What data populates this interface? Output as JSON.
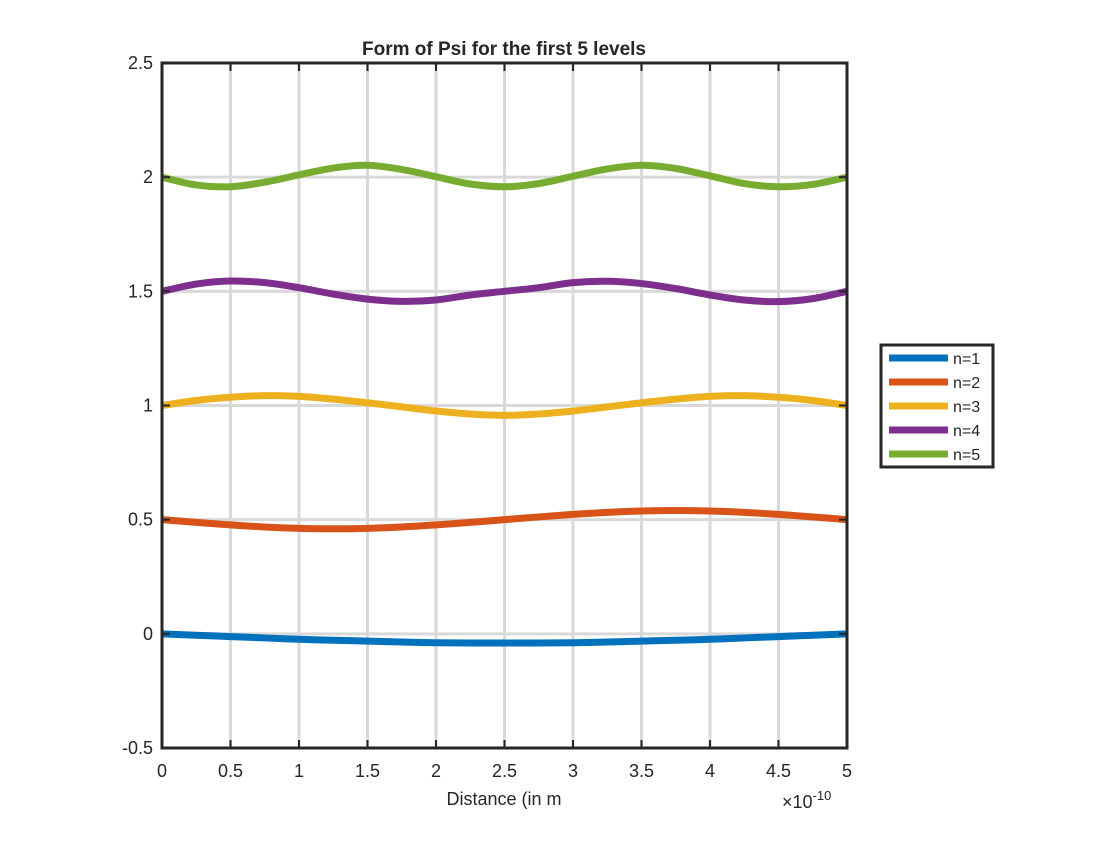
{
  "chart_data": {
    "type": "line",
    "title": "Form of Psi for the first 5 levels",
    "xlabel": "Distance (in m",
    "ylabel": "",
    "x_exponent_base": "×10",
    "x_exponent_power": "-10",
    "xlim": [
      0,
      5
    ],
    "ylim": [
      -0.5,
      2.5
    ],
    "xticks": [
      0,
      0.5,
      1,
      1.5,
      2,
      2.5,
      3,
      3.5,
      4,
      4.5,
      5
    ],
    "xtick_labels": [
      "0",
      "0.5",
      "1",
      "1.5",
      "2",
      "2.5",
      "3",
      "3.5",
      "4",
      "4.5",
      "5"
    ],
    "yticks": [
      -0.5,
      0,
      0.5,
      1,
      1.5,
      2,
      2.5
    ],
    "ytick_labels": [
      "-0.5",
      "0",
      "0.5",
      "1",
      "1.5",
      "2",
      "2.5"
    ],
    "grid": true,
    "legend_position": "outside-right",
    "x": [
      0,
      0.25,
      0.5,
      0.75,
      1,
      1.25,
      1.5,
      1.75,
      2,
      2.25,
      2.5,
      2.75,
      3,
      3.25,
      3.5,
      3.75,
      4,
      4.25,
      4.5,
      4.75,
      5
    ],
    "series": [
      {
        "name": "n=1",
        "color": "#0072BD",
        "values": [
          0,
          -0.006,
          -0.012,
          -0.018,
          -0.024,
          -0.028,
          -0.032,
          -0.036,
          -0.039,
          -0.04,
          -0.04,
          -0.04,
          -0.039,
          -0.036,
          -0.032,
          -0.028,
          -0.024,
          -0.018,
          -0.012,
          -0.006,
          0
        ]
      },
      {
        "name": "n=2",
        "color": "#D95319",
        "values": [
          0.5,
          0.488,
          0.477,
          0.468,
          0.462,
          0.46,
          0.462,
          0.468,
          0.477,
          0.488,
          0.5,
          0.512,
          0.523,
          0.532,
          0.538,
          0.54,
          0.538,
          0.532,
          0.523,
          0.512,
          0.5
        ]
      },
      {
        "name": "n=3",
        "color": "#EDB120",
        "values": [
          1.0,
          1.022,
          1.036,
          1.043,
          1.04,
          1.028,
          1.012,
          0.994,
          0.976,
          0.963,
          0.957,
          0.963,
          0.976,
          0.994,
          1.012,
          1.028,
          1.04,
          1.043,
          1.036,
          1.022,
          1.0
        ]
      },
      {
        "name": "n=4",
        "color": "#7E2F8E",
        "values": [
          1.5,
          1.532,
          1.545,
          1.538,
          1.516,
          1.488,
          1.466,
          1.456,
          1.462,
          1.484,
          1.5,
          1.516,
          1.538,
          1.544,
          1.534,
          1.512,
          1.484,
          1.462,
          1.455,
          1.468,
          1.5
        ]
      },
      {
        "name": "n=5",
        "color": "#77AC30",
        "values": [
          2.0,
          1.966,
          1.958,
          1.978,
          2.01,
          2.04,
          2.052,
          2.034,
          2.002,
          1.97,
          1.958,
          1.972,
          2.004,
          2.036,
          2.052,
          2.038,
          2.006,
          1.972,
          1.958,
          1.968,
          2.0
        ]
      }
    ]
  }
}
